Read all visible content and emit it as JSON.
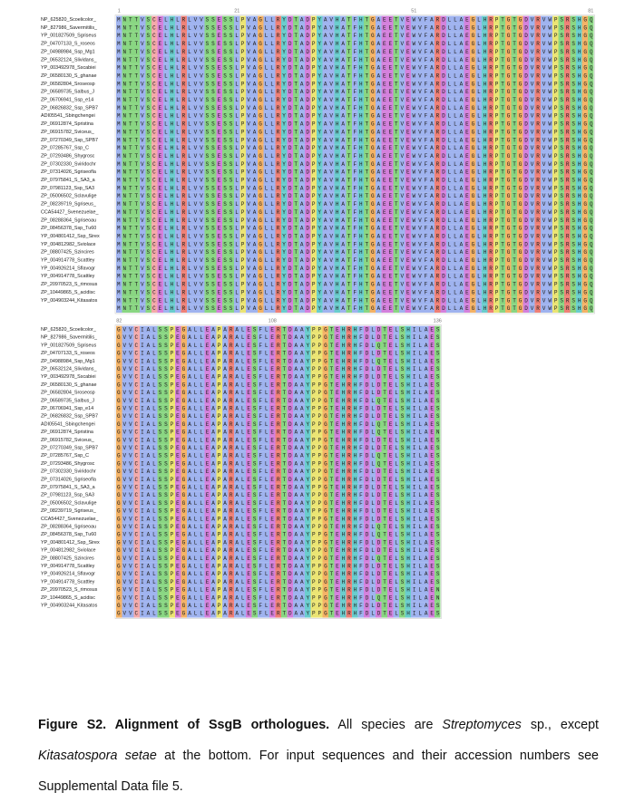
{
  "figure": {
    "names": [
      "NP_625820_Scoelicolor_",
      "NP_827986_Savermitilis_",
      "YP_001827509_Sgriseus",
      "ZP_04707133_S_roseos",
      "ZP_04988984_Ssp_Mg1",
      "ZP_06532124_Slividans_",
      "YP_003492978_Sscabiei",
      "ZP_06580130_S_ghanae",
      "ZP_06582804_Sroseosp",
      "ZP_06589735_Salbus_J",
      "ZP_06706941_Ssp_e14",
      "ZP_06826832_Ssp_SPB7",
      "ADI05541_Sbingchengei",
      "ZP_06912874_Spristina",
      "ZP_06915782_Sviceus_",
      "ZP_07270349_Ssp_SPB7",
      "ZP_07285767_Ssp_C",
      "ZP_07293486_Shygrosc",
      "ZP_07302330_Sviridochr",
      "ZP_07314026_Sgriseofla",
      "ZP_07975841_S_SA3_a",
      "ZP_07981123_Ssp_SA3",
      "ZP_05006502_Sclavulige",
      "ZP_08239719_Sgriseus_",
      "CCA54427_Svenezuelae_",
      "ZP_08288364_Sgriseoau",
      "ZP_08456378_Ssp_Tu60",
      "YP_004801412_Ssp_Sirex",
      "YP_004812982_Sviolace",
      "ZP_08807425_Szincires",
      "YP_004914778_Scattley",
      "YP_004926214_Sflavogr",
      "YP_004914778_Scattley",
      "ZP_20970523_S_rimosus",
      "ZP_10449865_S_acidisc",
      "YP_004903244_Kitasatos"
    ],
    "blocks": [
      {
        "ruler": [
          1,
          21,
          51,
          81
        ],
        "rows": [
          "MNTTVSCELHLRLVVSSESSLPVAGLLRYDTADPYAVHATFHTGAEETVEWVFARDLLAEGLHRPTGTGDVRVWPSRSHGQ",
          "MNTTVSCELHLRLVVSSESSLPVAGLLRYDTADPYAVHATFHTGAEETVEWVFARDLLAEGLHRPTGTGDVRVWPSRSHGQ",
          "MNTTVSCELHLRLVVSSESSLPVAGLLRYDTADPYAVHATFHTGAEETVEWVFARDLLAEGLHRPTGTGDVRVWPSRSHGQ",
          "MNTTVSCELHLRLVVSSESSLPVAGLLRYDTADPYAVHATFHTGAEETVEWVFARDLLAEGLHRPTGTGDVRVWPSRSHGQ",
          "MNTTVSCELHLRLVVSSESSLPVAGLLRYDTADPYAVHATFHTGAEETVEWVFARDLLAEGLHRPTGTGDVRVWPSRSHGQ",
          "MNTTVSCELHLRLVVSSESSLPVAGLLRYDTADPYAVHATFHTGAEETVEWVFARDLLAEGLHRPTGTGDVRVWPSRSHGQ",
          "MNTTVSCELHLRLVVSSESSLPVAGLLRYDTADPYAVHATFHTGAEETVEWVFARDLLAEGLHRPTGTGDVRVWPSRSHGQ",
          "MNTTVSCELHLRLVVSSESSLPVAGLLRYDTADPYAVHATFHTGAEETVEWVFARDLLAEGLHRPTGTGDVRVWPSRSHGQ",
          "MNTTVSCELHLRLVVSSESSLPVAGLLRYDTADPYAVHATFHTGAEETVEWVFARDLLAEGLHRPTGTGDVRVWPSRSHGQ",
          "MNTTVSCELHLRLVVSSESSLPVAGLLRYDTADPYAVHATFHTGAEETVEWVFARDLLAEGLHRPTGTGDVRVWPSRSHGQ",
          "MNTTVSCELHLRLVVSSESSLPVAGLLRYDTADPYAVHATFHTGAEETVEWVFARDLLAEGLHRPTGTGDVRVWPSRSHGQ",
          "MNTTVSCELHLRLVVSSESSLPVAGLLRYDTADPYAVHATFHTGAEETVEWVFARDLLAEGLHRPTGTGDVRVWPSRSHGQ",
          "MNTTVSCELHLRLVVSSESSLPVAGLLRYDTADPYAVHATFHTGAEETVEWVFARDLLAEGLHRPTGTGDVRVWPSRSHGQ",
          "MNTTVSCELHLRLVVSSESSLPVAGLLRYDTADPYAVHATFHTGAEETVEWVFARDLLAEGLHRPTGTGDVRVWPSRSHGQ",
          "MNTTVSCELHLRLVVSSESSLPVAGLLRYDTADPYAVHATFHTGAEETVEWVFARDLLAEGLHRPTGTGDVRVWPSRSHGQ",
          "MNTTVSCELHLRLVVSSESSLPVAGLLRYDTADPYAVHATFHTGAEETVEWVFARDLLAEGLHRPTGTGDVRVWPSRSHGQ",
          "MNTTVSCELHLRLVVSSESSLPVAGLLRYDTADPYAVHATFHTGAEETVEWVFARDLLAEGLHRPTGTGDVRVWPSRSHGQ",
          "MNTTVSCELHLRLVVSSESSLPVAGLLRYDTADPYAVHATFHTGAEETVEWVFARDLLAEGLHRPTGTGDVRVWPSRSHGQ",
          "MNTTVSCELHLRLVVSSESSLPVAGLLRYDTADPYAVHATFHTGAEETVEWVFARDLLAEGLHRPTGTGDVRVWPSRSHGQ",
          "MNTTVSCELHLRLVVSSESSLPVAGLLRYDTADPYAVHATFHTGAEETVEWVFARDLLAEGLHRPTGTGDVRVWPSRSHGQ",
          "MNTTVSCELHLRLVVSSESSLPVAGLLRYDTADPYAVHATFHTGAEETVEWVFARDLLAEGLHRPTGTGDVRVWPSRSHGQ",
          "MNTTVSCELHLRLVVSSESSLPVAGLLRYDTADPYAVHATFHTGAEETVEWVFARDLLAEGLHRPTGTGDVRVWPSRSHGQ",
          "MNTTVSCELHLRLVVSSESSLPVAGLLRYDTADPYAVHATFHTGAEETVEWVFARDLLAEGLHRPTGTGDVRVWPSRSHGQ",
          "MNTTVSCELHLRLVVSSESSLPVAGLLRYDTADPYAVHATFHTGAEETVEWVFARDLLAEGLHRPTGTGDVRVWPSRSHGQ",
          "MNTTVSCELHLRLVVSSESSLPVAGLLRYDTADPYAVHATFHTGAEETVEWVFARDLLAEGLHRPTGTGDVRVWPSRSHGQ",
          "MNTTVSCELHLRLVVSSESSLPVAGLLRYDTADPYAVHATFHTGAEETVEWVFARDLLAEGLHRPTGTGDVRVWPSRSHGQ",
          "MNTTVSCELHLRLVVSSESSLPVAGLLRYDTADPYAVHATFHTGAEETVEWVFARDLLAEGLHRPTGTGDVRVWPSRSHGQ",
          "MNTTVSCELHLRLVVSSESSLPVAGLLRYDTADPYAVHATFHTGAEETVEWVFARDLLAEGLHRPTGTGDVRVWPSRSHGQ",
          "MNTTVSCELHLRLVVSSESSLPVAGLLRYDTADPYAVHATFHTGAEETVEWVFARDLLAEGLHRPTGTGDVRVWPSRSHGQ",
          "MNTTVSCELHLRLVVSSESSLPVAGLLRYDTADPYAVHATFHTGAEETVEWVFARDLLAEGLHRPTGTGDVRVWPSRSHGQ",
          "MNTTVSCELHLRLVVSSESSLPVAGLLRYDTADPYAVHATFHTGAEETVEWVFARDLLAEGLHRPTGTGDVRVWPSRSHGQ",
          "MNTTVSCELHLRLVVSSESSLPVAGLLRYDTADPYAVHATFHTGAEETVEWVFARDLLAEGLHRPTGTGDVRVWPSRSHGQ",
          "MNTTVSCELHLRLVVSSESSLPVAGLLRYDTADPYAVHATFHTGAEETVEWVFARDLLAEGLHRPTGTGDVRVWPSRSHGQ",
          "MNTTVSCELHLRLVVSSESSLPVAGLLRYDTADPYAVHATFHTGAEETVEWVFARDLLAEGLHRPTGTGDVRVWPSRSHGQ",
          "MNTTVSCELHLRLVVSSESSLPVAGLLRYDTADPYAVHATFHTGAEETVEWVFARDLLAEGLHRPTGTGDVRVWPSRSHGQ",
          "MNTTVSCELHLRLVVSSESSLPVAGLLRYDTADPYAVHATFHTGAEETVEWVFARDLLAEGLHRPTGTGDVRVWPSRSHGQ"
        ],
        "consensus": "MNTTVSCELHLRLVVSSESSLPVAGLLRYDTADPYAVHATFHTGAEETVEWVFARDLLAEGLHRPTGTGDVRVWPSRSHGQ"
      },
      {
        "ruler": [
          82,
          108,
          136
        ],
        "rows": [
          "GVVCIALSSPEGALLEAPARALESFLERTDAAYPPGTEHRHFDLDTELSHILAES",
          "GVVCIALSSPEGALLEAPARALESFLERTDAAYPPGTEHRHFDLDTELSHILAES",
          "GVVCIALSSPEGALLEAPARALESFLERTDAAYPPGTEHRHFDLQTELSHILAES",
          "GVVCIALSSPEGALLEAPARALESFLERTDAAYPPGTEHRHFDLDTELSHILAES",
          "GVVCIALSSPEGALLEAPARALESFLERTDAAYPPGTEHRHFDLQTELSHILAES",
          "GVVCIALSSPEGALLEAPARALESFLERTDAAYPPGTEHRHFDLDTELSHILAES",
          "GVVCIALSSPEGALLEAPARALESFLERTDAAYPPGTEHRHFDLDTELSHILAES",
          "GVVCIALSSPEGALLEAPARALESFLERTDAAYPPGTEHRHFDLDTELSHILAES",
          "GVVCIALSSPEGALLEAPARALESFLERTDAAYPPGTEHRHFDLDTELSHILAES",
          "GVVCIALSSPEGALLEAPARALESFLERTDAAYPPGTEHRHFDLQTELSHILAES",
          "GVVCIALSSPEGALLEAPARALESFLERTDAAYPPGTEHRHFDLDTELSHILAES",
          "GVVCIALSSPEGALLEAPARALESFLERTDAAYPPGTEHRHFDLDTELSHILAES",
          "GVVCIALSSPEGALLEAPARALESFLERTDAAYPPGTEHRHFDLQTELSHILAES",
          "GVVCIALSSPEGALLEAPARALESFLERTDAAYPPGTEHRHFDLQTELSHILAEN",
          "GVVCIALSSPEGALLEAPARALESFLERTDAAYPPGTEHRHFDLDTELSHILAES",
          "GVVCIALSSPEGALLEAPARALESFLERTDAAYPPGTEHRHFDLDTELSHILAES",
          "GVVCIALSSPEGALLEAPARALESFLERTDAAYPPGTEHRHFDLQTELSHILAES",
          "GVVCIALSSPEGALLEAPARALESFLERTDAAYPPGTEHRHFDLQTELSHILAES",
          "GVVCIALSSPEGALLEAPARALESFLERTDAAYPPGTEHRHFDLDTELSHILAES",
          "GVVCIALSSPEGALLEAPARALESFLERTDAAYPPGTEHRHFDLDTELSHILAES",
          "GVVCIALSSPEGALLEAPARALESFLERTDAAYPPGTEHRHFDLDTELSHILAES",
          "GVVCIALSSPEGALLEAPARALESFLERTDAAYPPGTEHRHFDLDTELSHILAES",
          "GVVCIALSSPEGALLEAPARALESFLERTDAAYPPGTEHRHFDLDTELSHILAES",
          "GVVCIALSSPEGALLEAPARALESFLERTDAAYPPGTEHRHFDLDTELSHILAES",
          "GVVCIALSSPEGALLEAPARALESFLERTDAAYPPGTEHRHFDLDTELSHILAES",
          "GVVCIALSSPEGALLEAPARALESFLERTDAAYPPGTEHRHFDLQTELSHILAES",
          "GVVCIALSSPEGALLEAPARALESFLERTDAAYPPGTEHRHFDLQTELSHILAES",
          "GVVCIALSSPEGALLEAPARALESFLERTDAAYPPGTEHRHFDLDTELSHILAES",
          "GVVCIALSSPEGALLEAPARALESFLERTDAAYPPGTEHRHFDLDTELSHILAES",
          "GVVCIALSSPEGALLEAPARALESFLERTDAAYPPGTEHRHFDLQTELSHILAES",
          "GVVCIALSSPEGALLEAPARALESFLERTDAAYPPGTEHRHFDLDTELSHILAES",
          "GVVCIALSSPEGALLEAPARALESFLERTDAAYPPGTEHRHFDLDTELSHILAES",
          "GVVCIALSSPEGALLEAPARALESFLERTDAAYPPGTEHRHFDLDTELSHILAES",
          "GVVCIALSSPEGALLEAPARALESFLERTDAAYPPGTEHRHFDLDTELSHILAEN",
          "GVVCIALSSPEGALLEAPARALESFLERTDAAYPPGTEHRHFDLQTELSHILAEN",
          "GVVCIALSSPEGALLEAPARALESFLERTDAAYPPGTEHRHFDLDTELSHILAES"
        ],
        "consensus": "GVVCIALSSPEGALLEAPARALESFLERTDAAYPPGTEHRHFDLDTELSHILAES"
      }
    ]
  },
  "caption": {
    "label": "Figure S2. Alignment of SsgB orthologues.",
    "parts": [
      " All species are ",
      "Streptomyces",
      " sp., except ",
      "Kitasatospora setae",
      " at the bottom. For input sequences and their accession numbers see Supplemental Data file 5."
    ]
  }
}
